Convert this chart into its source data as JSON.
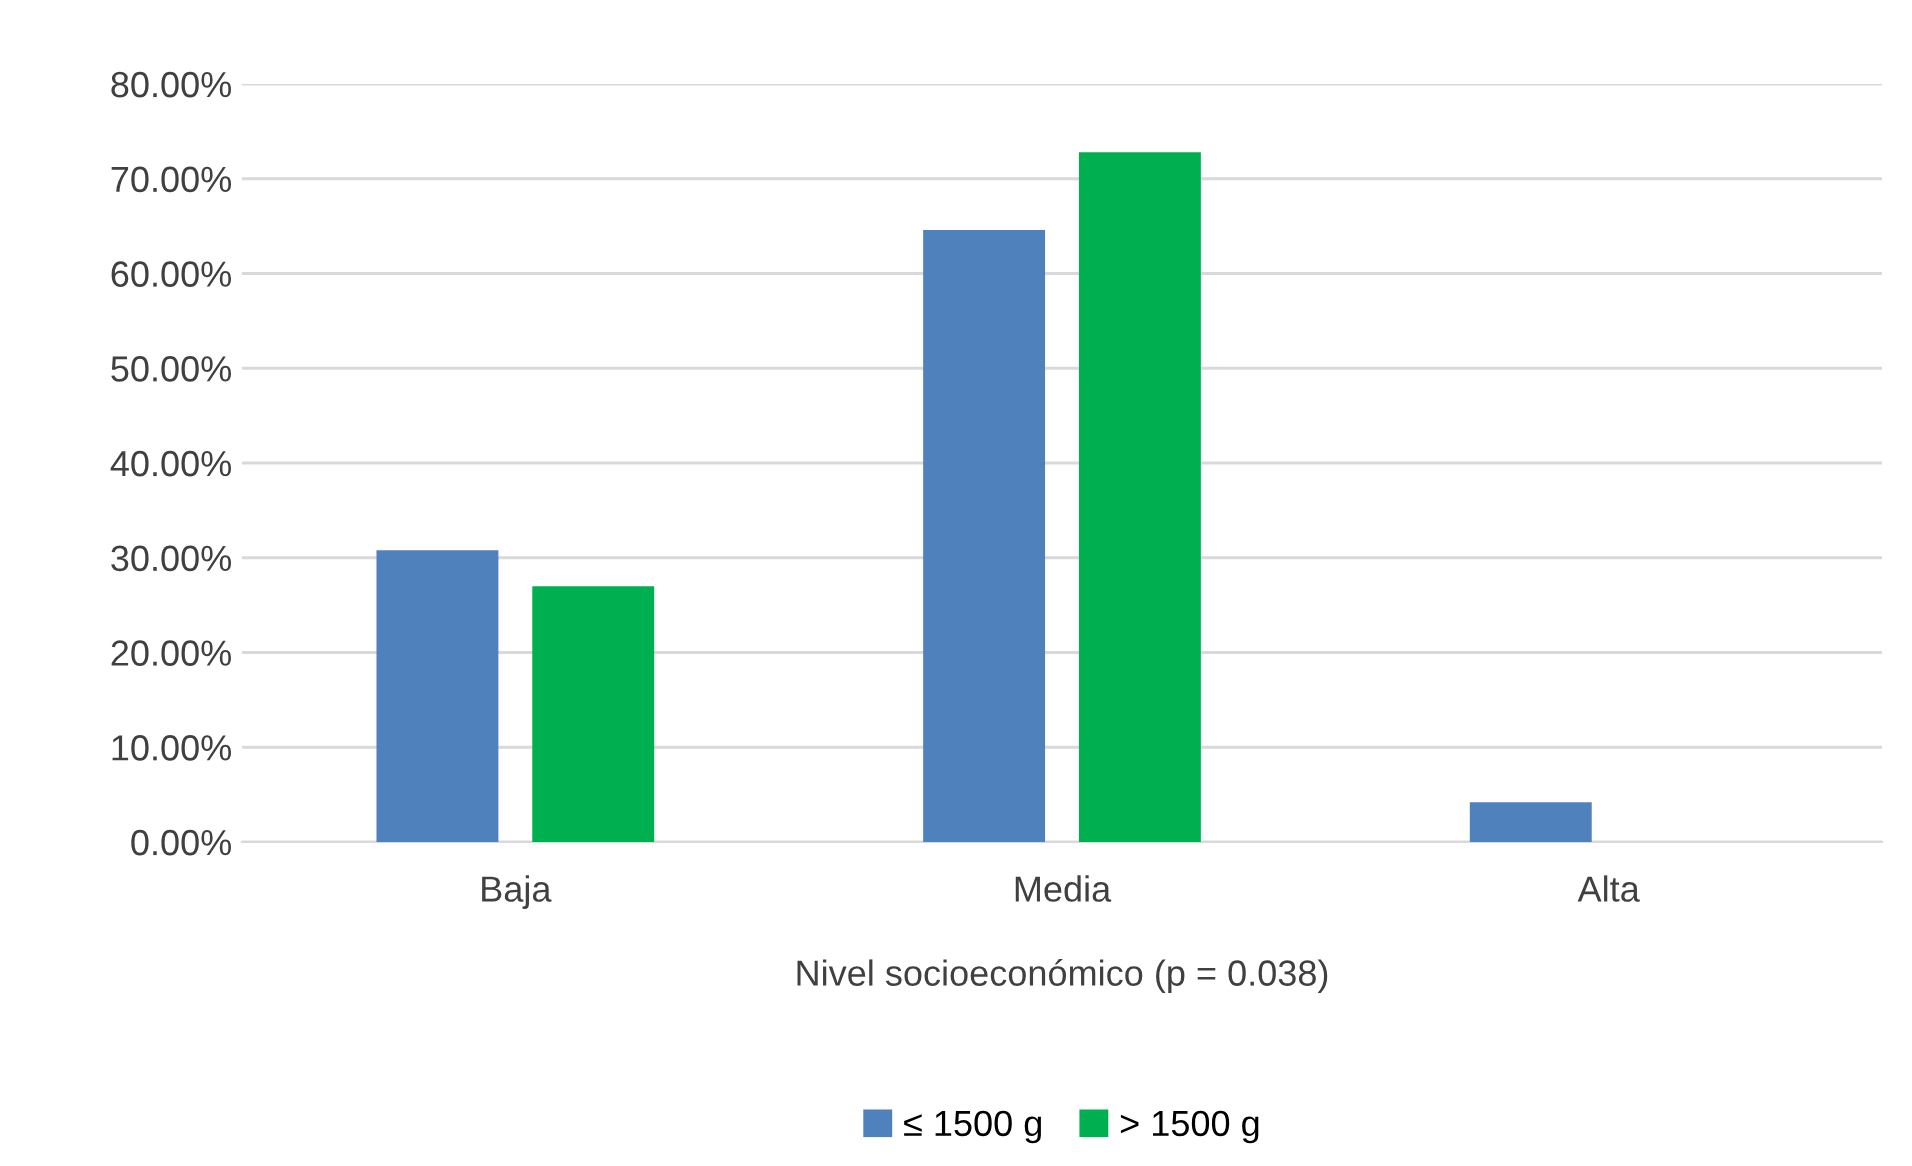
{
  "chart_data": {
    "type": "bar",
    "categories": [
      "Baja",
      "Media",
      "Alta"
    ],
    "series": [
      {
        "name": "≤ 1500 g",
        "color": "#4f81bd",
        "values": [
          30.8,
          64.6,
          4.2
        ]
      },
      {
        "name": "> 1500 g",
        "color": "#00b050",
        "values": [
          27.0,
          72.8,
          0
        ]
      }
    ],
    "xlabel": "Nivel socioeconómico (p = 0.038)",
    "ylim": [
      0,
      80
    ],
    "yticks": [
      {
        "value": 0,
        "label": "0.00%"
      },
      {
        "value": 10,
        "label": "10.00%"
      },
      {
        "value": 20,
        "label": "20.00%"
      },
      {
        "value": 30,
        "label": "30.00%"
      },
      {
        "value": 40,
        "label": "40.00%"
      },
      {
        "value": 50,
        "label": "50.00%"
      },
      {
        "value": 60,
        "label": "60.00%"
      },
      {
        "value": 70,
        "label": "70.00%"
      },
      {
        "value": 80,
        "label": "80.00%"
      }
    ],
    "grid": "y",
    "legend": "bottom"
  }
}
